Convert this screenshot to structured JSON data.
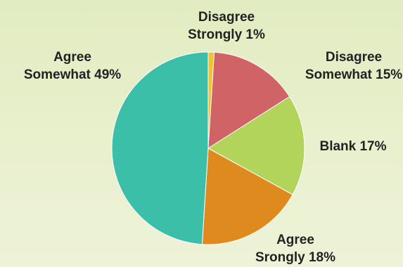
{
  "chart_data": {
    "type": "pie",
    "title": "",
    "slices": [
      {
        "label_lines": [
          "Disagree",
          "Strongly 1%"
        ],
        "value": 1,
        "color": "#f2c230"
      },
      {
        "label_lines": [
          "Disagree",
          "Somewhat 15%"
        ],
        "value": 15,
        "color": "#d06365"
      },
      {
        "label_lines": [
          "Blank 17%"
        ],
        "value": 17,
        "color": "#b2d45a"
      },
      {
        "label_lines": [
          "Agree",
          "Srongly 18%"
        ],
        "value": 18,
        "color": "#df8a1e"
      },
      {
        "label_lines": [
          "Agree",
          "Somewhat 49%"
        ],
        "value": 49,
        "color": "#3bbfa8"
      }
    ],
    "legend": "none",
    "label_placement": "outside"
  }
}
